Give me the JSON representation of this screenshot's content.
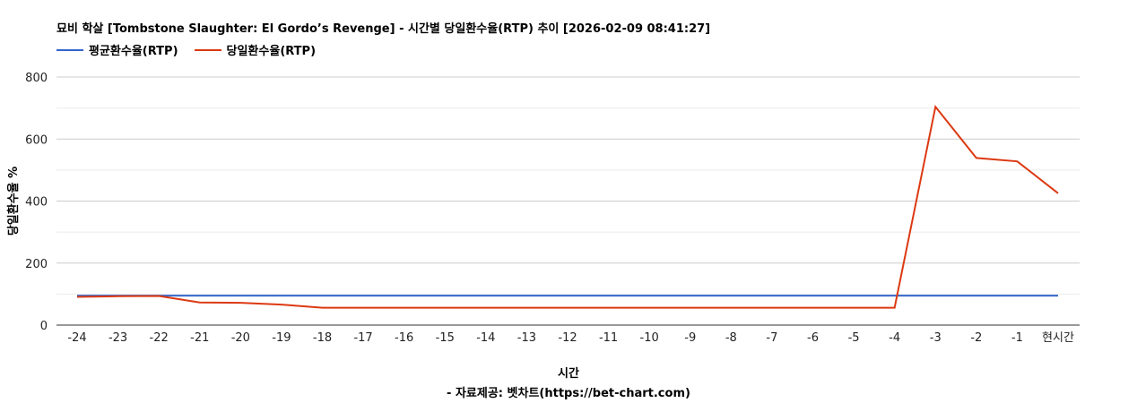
{
  "chart_data": {
    "type": "line",
    "title": "묘비 학살 [Tombstone Slaughter: El Gordo’s Revenge] - 시간별 당일환수율(RTP) 추이 [2026-02-09 08:41:27]",
    "xlabel": "시간",
    "ylabel": "당일환수율 %",
    "source": "- 자료제공: 벳차트(https://bet-chart.com)",
    "categories": [
      "-24",
      "-23",
      "-22",
      "-21",
      "-20",
      "-19",
      "-18",
      "-17",
      "-16",
      "-15",
      "-14",
      "-13",
      "-12",
      "-11",
      "-10",
      "-9",
      "-8",
      "-7",
      "-6",
      "-5",
      "-4",
      "-3",
      "-2",
      "-1",
      "현시간"
    ],
    "yticks": [
      0,
      200,
      400,
      600,
      800
    ],
    "ylim": [
      0,
      800
    ],
    "grid": true,
    "legend": "top-left",
    "series": [
      {
        "name": "평균환수율(RTP)",
        "color": "#3366cc",
        "values": [
          95,
          95,
          95,
          95,
          95,
          95,
          95,
          95,
          95,
          95,
          95,
          95,
          95,
          95,
          95,
          95,
          95,
          95,
          95,
          95,
          95,
          95,
          95,
          95,
          95
        ]
      },
      {
        "name": "당일환수율(RTP)",
        "color": "#dc3912",
        "values": [
          91,
          93,
          94,
          73,
          72,
          66,
          56,
          56,
          56,
          56,
          56,
          56,
          56,
          56,
          56,
          56,
          56,
          56,
          56,
          56,
          56,
          704,
          539,
          528,
          425
        ]
      }
    ]
  }
}
